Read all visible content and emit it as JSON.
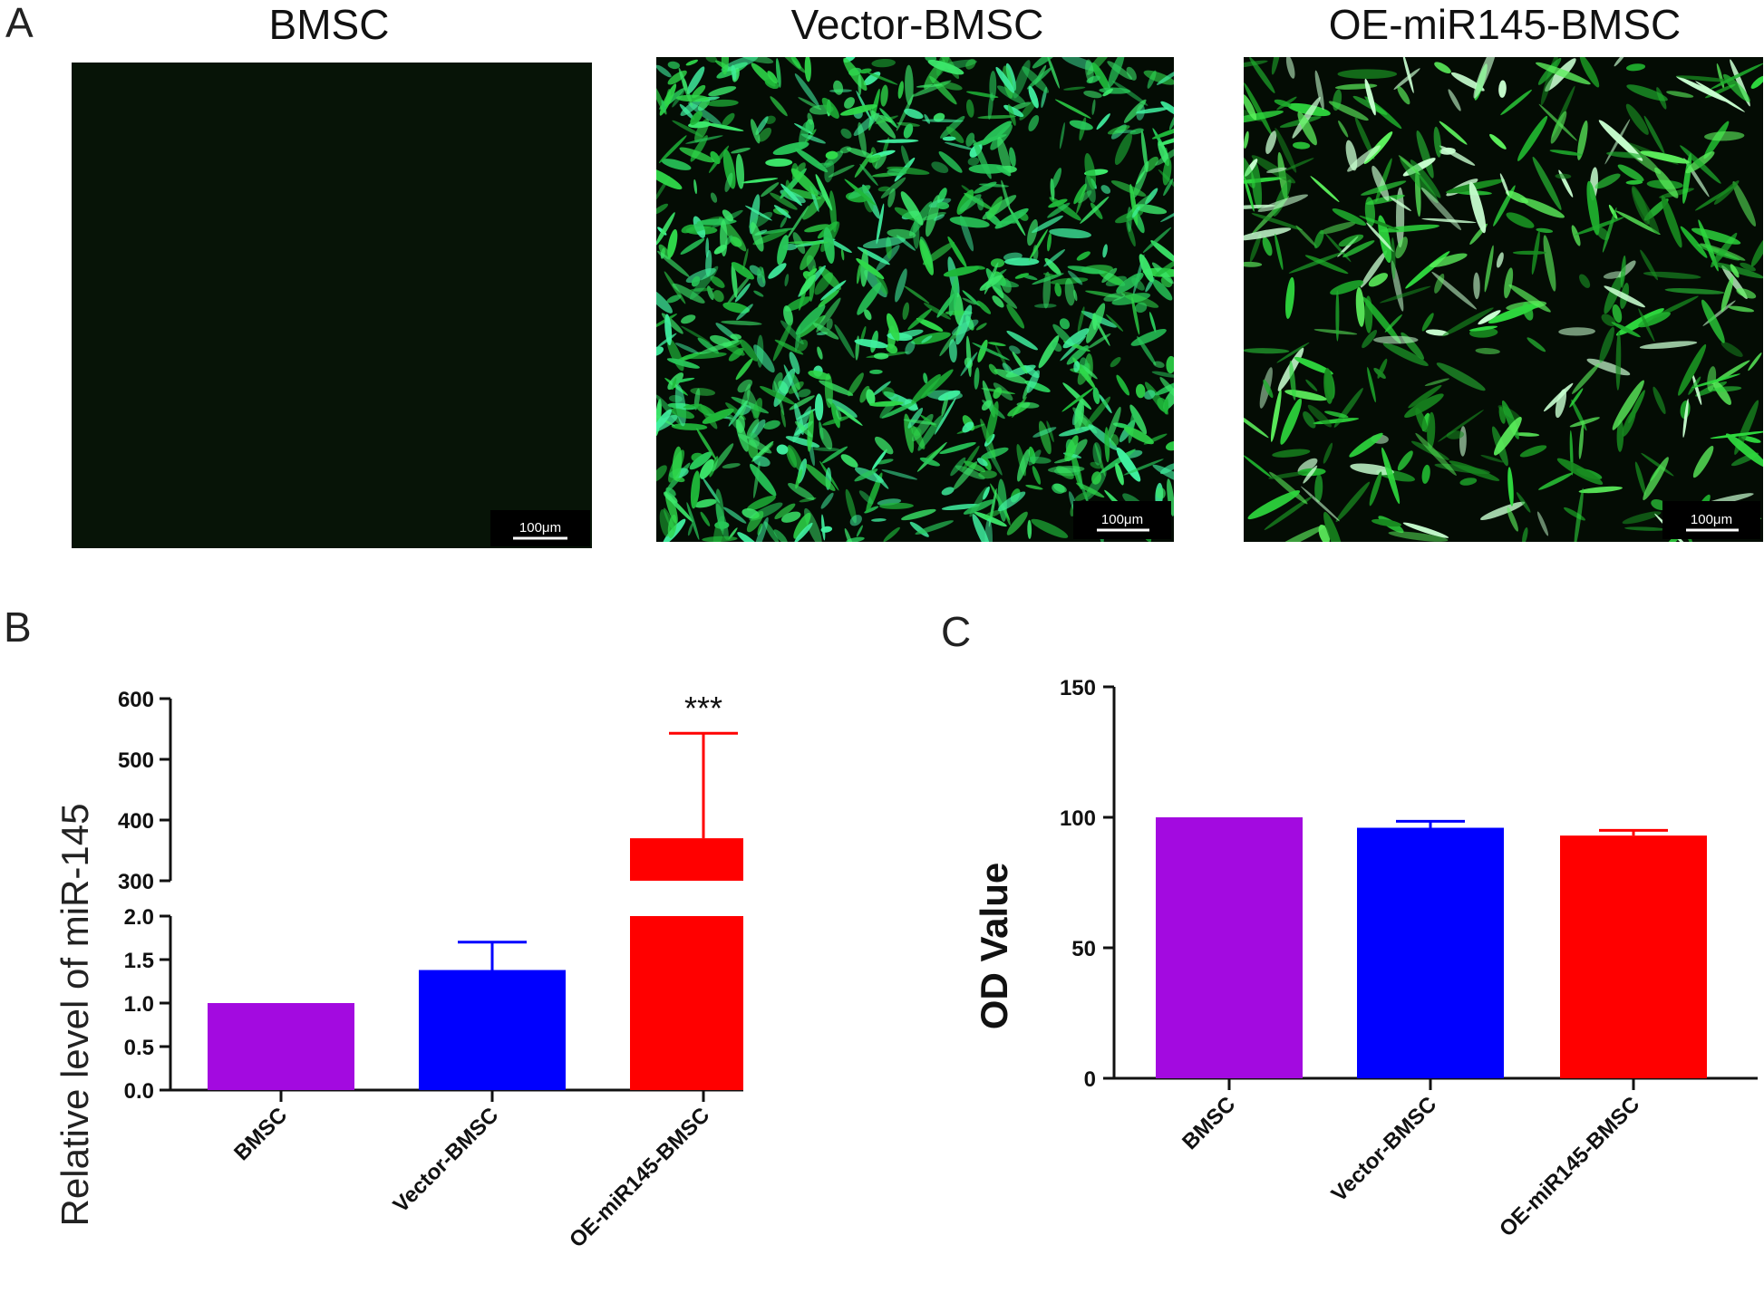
{
  "panels": {
    "a": {
      "letter": "A",
      "images": [
        {
          "title": "BMSC",
          "scale_bar": "100μm",
          "fluorescence": "none"
        },
        {
          "title": "Vector-BMSC",
          "scale_bar": "100μm",
          "fluorescence": "dense"
        },
        {
          "title": "OE-miR145-BMSC",
          "scale_bar": "100μm",
          "fluorescence": "sparse"
        }
      ]
    },
    "b": {
      "letter": "B"
    },
    "c": {
      "letter": "C"
    }
  },
  "colors": {
    "purple": "#a30ae0",
    "blue": "#0000ff",
    "red": "#ff0000",
    "green": "#33e84a",
    "background_dark": "#071407"
  },
  "chart_data": [
    {
      "type": "bar",
      "panel": "B",
      "categories": [
        "BMSC",
        "Vector-BMSC",
        "OE-miR145-BMSC"
      ],
      "values": [
        1.0,
        1.38,
        370
      ],
      "error_upper": [
        1.0,
        1.7,
        543
      ],
      "error_direction": "upper",
      "colors": [
        "#a30ae0",
        "#0000ff",
        "#ff0000"
      ],
      "ylabel": "Relative  level of miR-145",
      "axis_break": {
        "lower_range": [
          0,
          2.0
        ],
        "upper_range": [
          300,
          600
        ]
      },
      "lower_ticks": [
        "0.0",
        "0.5",
        "1.0",
        "1.5",
        "2.0"
      ],
      "upper_ticks": [
        "300",
        "400",
        "500",
        "600"
      ],
      "annotations": [
        {
          "category": "OE-miR145-BMSC",
          "text": "***"
        }
      ]
    },
    {
      "type": "bar",
      "panel": "C",
      "categories": [
        "BMSC",
        "Vector-BMSC",
        "OE-miR145-BMSC"
      ],
      "values": [
        100,
        96,
        93
      ],
      "error_upper": [
        100,
        98.5,
        95
      ],
      "error_direction": "upper",
      "colors": [
        "#a30ae0",
        "#0000ff",
        "#ff0000"
      ],
      "ylabel": "OD Value",
      "ylim": [
        0,
        150
      ],
      "ticks": [
        "0",
        "50",
        "100",
        "150"
      ]
    }
  ]
}
